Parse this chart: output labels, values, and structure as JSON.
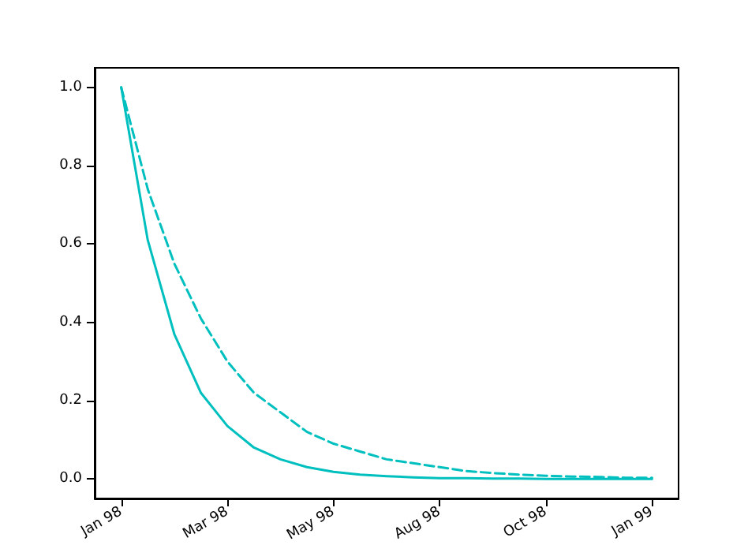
{
  "chart_data": {
    "type": "line",
    "categories": [
      "Jan 98",
      null,
      null,
      null,
      "Mar 98",
      null,
      null,
      null,
      "May 98",
      null,
      null,
      null,
      "Aug 98",
      null,
      null,
      null,
      "Oct 98",
      null,
      null,
      null,
      "Jan 99"
    ],
    "ylim": [
      -0.05,
      1.05
    ],
    "yticks": [
      {
        "value": 0,
        "label": "0.0"
      },
      {
        "value": 0.2,
        "label": "0.2"
      },
      {
        "value": 0.4,
        "label": "0.4"
      },
      {
        "value": 0.6,
        "label": "0.6"
      },
      {
        "value": 0.8,
        "label": "0.8"
      },
      {
        "value": 1,
        "label": "1.0"
      }
    ],
    "grid": false,
    "marker": "none",
    "series": [
      {
        "color": "#00bfbf",
        "line_style": "solid",
        "values": [
          1,
          0.61,
          0.37,
          0.22,
          0.135,
          0.08,
          0.05,
          0.03,
          0.018,
          0.011,
          0.007,
          0.004,
          0.002,
          0.002,
          0.001,
          0.001,
          0,
          0,
          0,
          0,
          0
        ]
      },
      {
        "color": "#00bfbf",
        "line_style": "dashed",
        "values": [
          1,
          0.74,
          0.55,
          0.41,
          0.3,
          0.22,
          0.17,
          0.12,
          0.09,
          0.07,
          0.05,
          0.04,
          0.03,
          0.02,
          0.015,
          0.011,
          0.008,
          0.006,
          0.005,
          0.003,
          0.003
        ]
      }
    ]
  }
}
